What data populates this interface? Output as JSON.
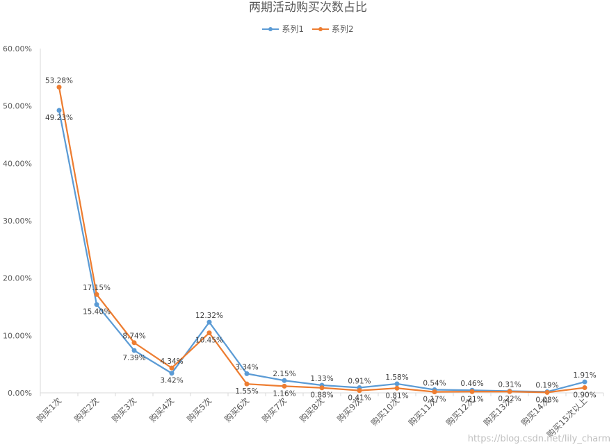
{
  "colors": {
    "series1": "#5B9BD5",
    "series2": "#ED7D31",
    "text": "#595959",
    "grid": "#D9D9D9"
  },
  "chart_data": {
    "type": "line",
    "title": "两期活动购买次数占比",
    "categories": [
      "购买1次",
      "购买2次",
      "购买3次",
      "购买4次",
      "购买5次",
      "购买6次",
      "购买7次",
      "购买8次",
      "购买9次",
      "购买10次",
      "购买11次",
      "购买12次",
      "购买13次",
      "购买14次",
      "购买15次以上"
    ],
    "series": [
      {
        "name": "系列1",
        "values": [
          49.23,
          15.4,
          7.39,
          3.42,
          12.32,
          3.34,
          2.15,
          1.33,
          0.91,
          1.58,
          0.54,
          0.46,
          0.31,
          0.19,
          1.91
        ]
      },
      {
        "name": "系列2",
        "values": [
          53.28,
          17.15,
          8.74,
          4.34,
          10.45,
          1.55,
          1.16,
          0.88,
          0.41,
          0.81,
          0.17,
          0.21,
          0.22,
          0.08,
          0.9
        ]
      }
    ],
    "value_labels": [
      [
        "49.23%",
        "15.40%",
        "7.39%",
        "3.42%",
        "12.32%",
        "3.34%",
        "2.15%",
        "1.33%",
        "0.91%",
        "1.58%",
        "0.54%",
        "0.46%",
        "0.31%",
        "0.19%",
        "1.91%"
      ],
      [
        "53.28%",
        "17.15%",
        "8.74%",
        "4.34%",
        "10.45%",
        "1.55%",
        "1.16%",
        "0.88%",
        "0.41%",
        "0.81%",
        "0.17%",
        "0.21%",
        "0.22%",
        "0.08%",
        "0.90%"
      ]
    ],
    "ylim": [
      0,
      60
    ],
    "yticks": [
      0,
      10,
      20,
      30,
      40,
      50,
      60
    ],
    "ytick_labels": [
      "0.00%",
      "10.00%",
      "20.00%",
      "30.00%",
      "40.00%",
      "50.00%",
      "60.00%"
    ],
    "legend_position": "top",
    "grid": false
  },
  "watermark": "https://blog.csdn.net/lily_charm"
}
